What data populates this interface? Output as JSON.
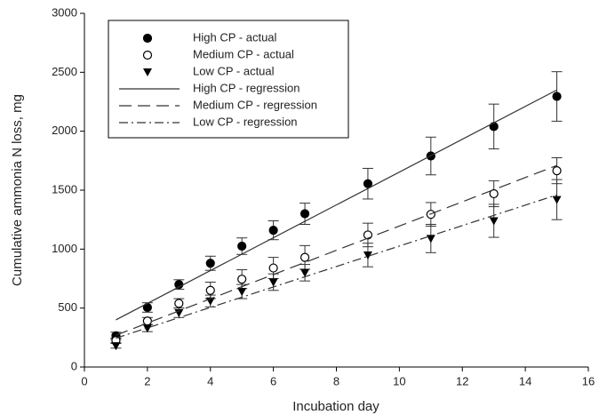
{
  "chart_data": {
    "type": "scatter",
    "xlabel": "Incubation day",
    "ylabel": "Cumulative ammonia N loss, mg",
    "xlim": [
      0,
      16
    ],
    "xticks": [
      0,
      2,
      4,
      6,
      8,
      10,
      12,
      14,
      16
    ],
    "ylim": [
      0,
      3000
    ],
    "yticks": [
      0,
      500,
      1000,
      1500,
      2000,
      2500,
      3000
    ],
    "legend": "upper left",
    "series": [
      {
        "name": "High CP - actual",
        "color": "#000000",
        "marker": "filled-circle",
        "x": [
          1,
          2,
          3,
          4,
          5,
          6,
          7,
          9,
          11,
          13,
          15
        ],
        "values": [
          265,
          505,
          700,
          880,
          1025,
          1160,
          1300,
          1555,
          1790,
          2040,
          2295
        ],
        "errors": [
          30,
          40,
          40,
          60,
          70,
          80,
          90,
          130,
          160,
          190,
          210
        ]
      },
      {
        "name": "Medium CP - actual",
        "color": "#000000",
        "marker": "open-circle",
        "x": [
          1,
          2,
          3,
          4,
          5,
          6,
          7,
          9,
          11,
          13,
          15
        ],
        "values": [
          225,
          390,
          540,
          650,
          745,
          840,
          930,
          1120,
          1295,
          1470,
          1665
        ],
        "errors": [
          20,
          30,
          40,
          70,
          80,
          90,
          100,
          100,
          100,
          110,
          110
        ]
      },
      {
        "name": "Low CP - actual",
        "color": "#000000",
        "marker": "triangle-down",
        "x": [
          1,
          2,
          3,
          4,
          5,
          6,
          7,
          9,
          11,
          13,
          15
        ],
        "values": [
          180,
          330,
          460,
          560,
          640,
          720,
          800,
          950,
          1090,
          1240,
          1420
        ],
        "errors": [
          20,
          30,
          40,
          50,
          60,
          70,
          70,
          100,
          120,
          140,
          170
        ]
      },
      {
        "name": "High CP - regression",
        "color": "#333333",
        "linestyle": "solid",
        "x": [
          1,
          15
        ],
        "values": [
          400,
          2350
        ]
      },
      {
        "name": "Medium CP - regression",
        "color": "#333333",
        "linestyle": "dashed",
        "x": [
          1,
          15
        ],
        "values": [
          270,
          1710
        ]
      },
      {
        "name": "Low CP - regression",
        "color": "#333333",
        "linestyle": "dashdot",
        "x": [
          1,
          15
        ],
        "values": [
          245,
          1460
        ]
      }
    ]
  }
}
